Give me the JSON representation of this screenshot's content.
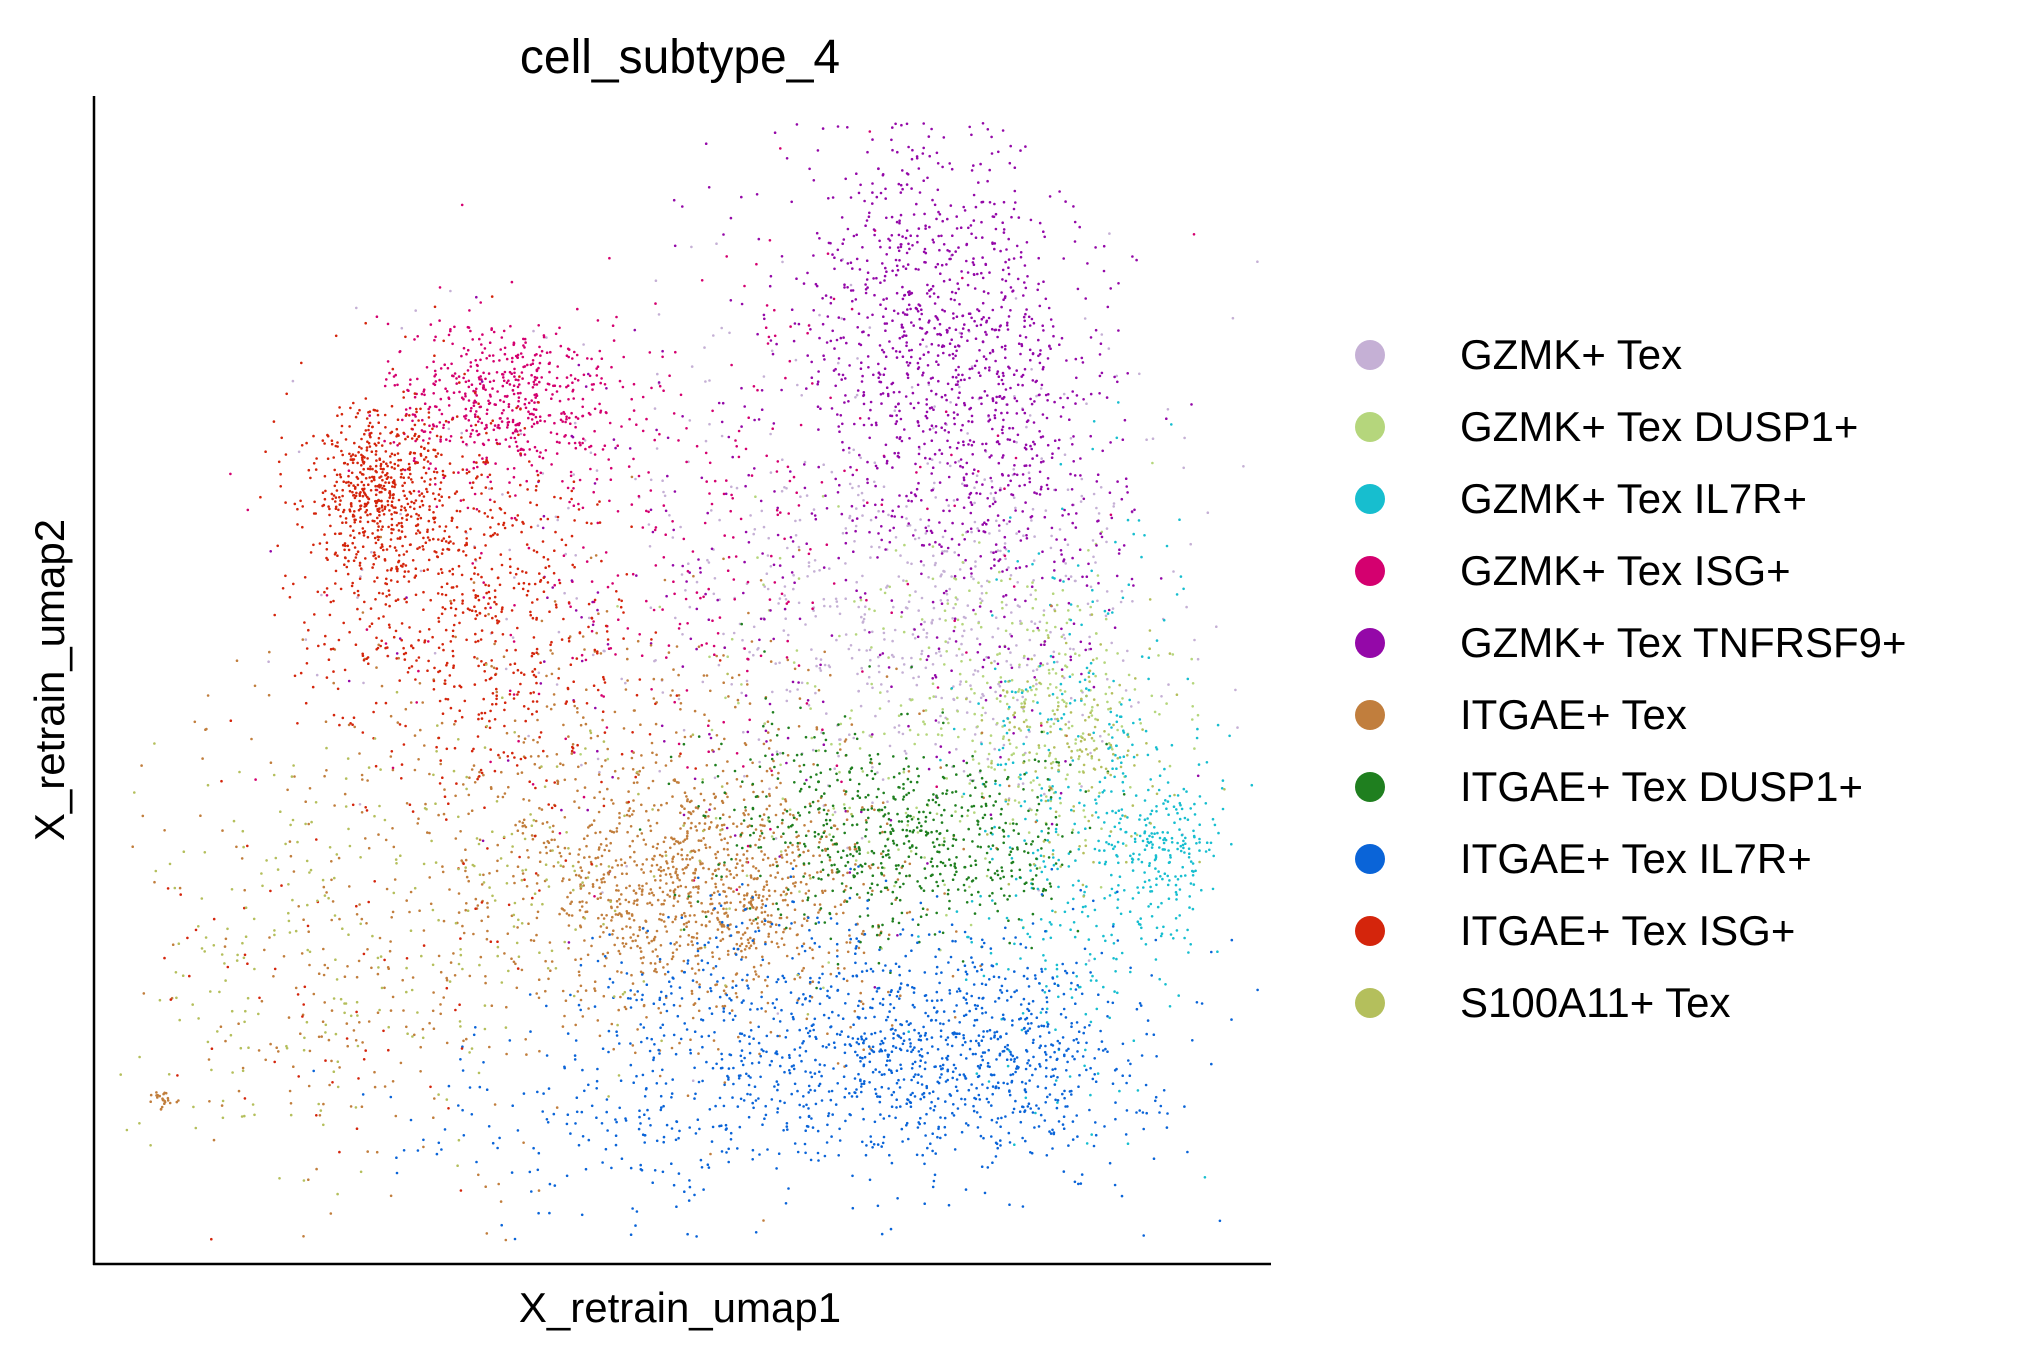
{
  "chart_data": {
    "type": "scatter",
    "title": "cell_subtype_4",
    "xlabel": "X_retrain_umap1",
    "ylabel": "X_retrain_umap2",
    "xticks": [],
    "yticks": [],
    "grid": false,
    "legend_position": "right",
    "series": [
      {
        "name": "GZMK+ Tex",
        "color": "#c5b0d5",
        "clusters": [
          [
            0.72,
            0.55,
            0.09,
            0.08,
            700
          ],
          [
            0.6,
            0.62,
            0.18,
            0.12,
            500
          ]
        ]
      },
      {
        "name": "GZMK+ Tex DUSP1+",
        "color": "#b5d67c",
        "clusters": [
          [
            0.8,
            0.48,
            0.06,
            0.06,
            450
          ],
          [
            0.68,
            0.45,
            0.1,
            0.1,
            250
          ]
        ]
      },
      {
        "name": "GZMK+ Tex IL7R+",
        "color": "#17becf",
        "clusters": [
          [
            0.91,
            0.36,
            0.025,
            0.035,
            350
          ],
          [
            0.84,
            0.42,
            0.05,
            0.12,
            450
          ],
          [
            0.82,
            0.3,
            0.04,
            0.08,
            200
          ]
        ]
      },
      {
        "name": "GZMK+ Tex ISG+",
        "color": "#d4006f",
        "clusters": [
          [
            0.35,
            0.74,
            0.05,
            0.035,
            900
          ],
          [
            0.5,
            0.62,
            0.12,
            0.12,
            500
          ]
        ]
      },
      {
        "name": "GZMK+ Tex TNFRSF9+",
        "color": "#9408a8",
        "clusters": [
          [
            0.7,
            0.81,
            0.06,
            0.09,
            1300
          ],
          [
            0.78,
            0.7,
            0.05,
            0.1,
            800
          ],
          [
            0.58,
            0.58,
            0.14,
            0.12,
            400
          ]
        ]
      },
      {
        "name": "ITGAE+ Tex",
        "color": "#c17e3d",
        "clusters": [
          [
            0.52,
            0.32,
            0.07,
            0.05,
            1400
          ],
          [
            0.43,
            0.38,
            0.14,
            0.1,
            1100
          ],
          [
            0.23,
            0.22,
            0.1,
            0.09,
            250
          ],
          [
            0.06,
            0.14,
            0.006,
            0.004,
            40
          ]
        ]
      },
      {
        "name": "ITGAE+ Tex DUSP1+",
        "color": "#1f7f1f",
        "clusters": [
          [
            0.72,
            0.36,
            0.06,
            0.04,
            700
          ],
          [
            0.62,
            0.38,
            0.06,
            0.05,
            400
          ]
        ]
      },
      {
        "name": "ITGAE+ Tex IL7R+",
        "color": "#0a64d8",
        "clusters": [
          [
            0.74,
            0.18,
            0.08,
            0.05,
            1500
          ],
          [
            0.57,
            0.2,
            0.09,
            0.06,
            700
          ],
          [
            0.45,
            0.12,
            0.1,
            0.04,
            300
          ]
        ]
      },
      {
        "name": "ITGAE+ Tex ISG+",
        "color": "#d4250c",
        "clusters": [
          [
            0.24,
            0.66,
            0.03,
            0.035,
            800
          ],
          [
            0.29,
            0.6,
            0.06,
            0.07,
            900
          ],
          [
            0.36,
            0.5,
            0.06,
            0.08,
            400
          ],
          [
            0.18,
            0.25,
            0.08,
            0.1,
            120
          ]
        ]
      },
      {
        "name": "S100A11+ Tex",
        "color": "#b4bf5c",
        "clusters": [
          [
            0.16,
            0.25,
            0.07,
            0.1,
            250
          ],
          [
            0.35,
            0.33,
            0.1,
            0.08,
            300
          ],
          [
            0.84,
            0.44,
            0.04,
            0.05,
            250
          ]
        ]
      }
    ]
  }
}
